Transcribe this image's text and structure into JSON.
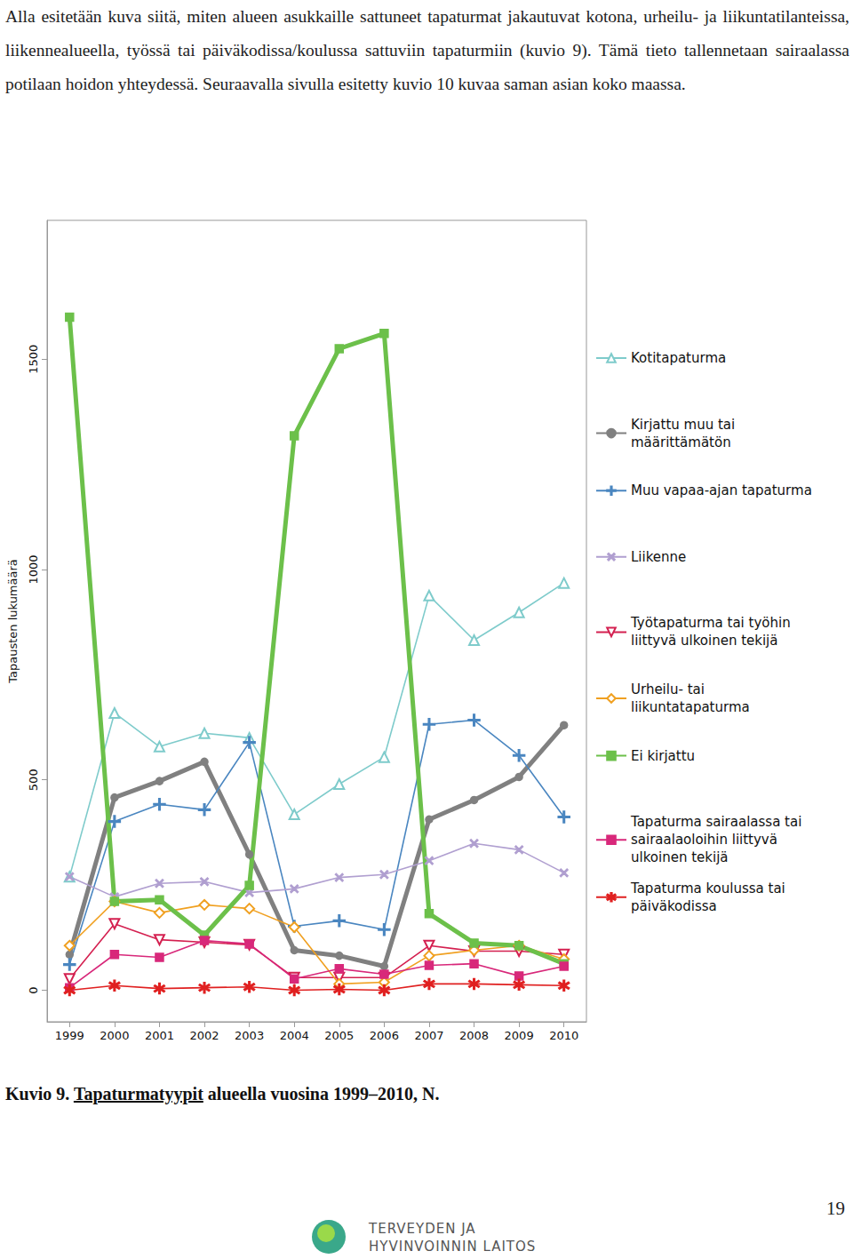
{
  "document": {
    "intro": "Alla esitetään kuva siitä, miten alueen asukkaille sattuneet tapaturmat jakautuvat kotona, urheilu- ja liikuntatilanteissa, liikennealueella, työssä tai päiväkodissa/koulussa sattuviin tapaturmiin (kuvio 9). Tämä tieto tallennetaan sairaalassa potilaan hoidon yhteydessä. Seuraavalla sivulla esitetty kuvio 10 kuvaa saman asian koko maassa.",
    "caption": {
      "prefix": "Kuvio 9. ",
      "underlined": "Tapaturmatyypit",
      "suffix": " alueella vuosina 1999–2010, N."
    },
    "logo": [
      "TERVEYDEN JA",
      "HYVINVOINNIN LAITOS"
    ],
    "page_number": "19"
  },
  "chart_data": {
    "type": "line",
    "y_label": "Tapausten lukumäärä",
    "categories": [
      "1999",
      "2000",
      "2001",
      "2002",
      "2003",
      "2004",
      "2005",
      "2006",
      "2007",
      "2008",
      "2009",
      "2010"
    ],
    "ylim": [
      -75,
      1830
    ],
    "yticks": [
      0,
      500,
      1000,
      1500
    ],
    "grid": false,
    "legend": "right",
    "series": [
      {
        "name": "Kotitapaturma",
        "color": "#7ecbcb",
        "marker": "triangle",
        "values": [
          270,
          659,
          579,
          611,
          600,
          418,
          490,
          554,
          938,
          832,
          898,
          968
        ]
      },
      {
        "name": "Kirjattu muu tai määrittämätön",
        "color": "#808080",
        "marker": "circle",
        "line_style": "thick",
        "values": [
          85,
          458,
          497,
          543,
          323,
          95,
          82,
          57,
          406,
          452,
          507,
          630
        ]
      },
      {
        "name": "Muu vapaa-ajan tapaturma",
        "color": "#4a86c0",
        "marker": "plus",
        "values": [
          61,
          401,
          442,
          429,
          589,
          152,
          165,
          144,
          632,
          642,
          558,
          412
        ]
      },
      {
        "name": "Liikenne",
        "color": "#b09fd0",
        "marker": "x",
        "values": [
          270,
          222,
          254,
          258,
          232,
          241,
          268,
          275,
          308,
          349,
          334,
          279
        ]
      },
      {
        "name": "Työtapaturma tai työhin liittyvä ulkoinen tekijä",
        "color": "#d42050",
        "marker": "triangle-down",
        "values": [
          27,
          158,
          120,
          114,
          108,
          30,
          30,
          30,
          106,
          93,
          93,
          85
        ]
      },
      {
        "name": "Urheilu- tai liikuntatapaturma",
        "color": "#f0a020",
        "marker": "diamond",
        "values": [
          106,
          211,
          184,
          203,
          194,
          150,
          15,
          19,
          82,
          95,
          106,
          74
        ]
      },
      {
        "name": "Ei kirjattu",
        "color": "#6cc04a",
        "marker": "square",
        "line_style": "thick",
        "values": [
          1600,
          211,
          215,
          131,
          249,
          1318,
          1525,
          1561,
          182,
          112,
          106,
          63
        ]
      },
      {
        "name": "Tapaturma sairaalassa tai sairaalaoloihin liittyvä ulkoinen tekijä",
        "color": "#d8287a",
        "marker": "square",
        "values": [
          6,
          85,
          78,
          118,
          110,
          27,
          51,
          38,
          59,
          63,
          34,
          57
        ]
      },
      {
        "name": "Tapaturma koulussa tai päiväkodissa",
        "color": "#e02020",
        "marker": "asterisk",
        "values": [
          0,
          11,
          4,
          6,
          8,
          0,
          2,
          0,
          15,
          15,
          13,
          11
        ]
      }
    ]
  }
}
